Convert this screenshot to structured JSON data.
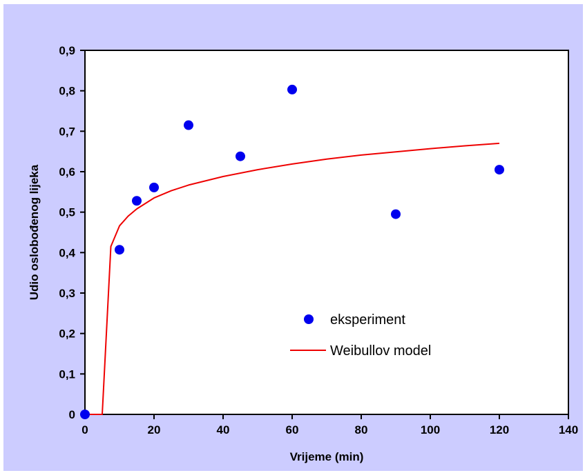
{
  "chart_data": {
    "type": "scatter",
    "xlabel": "Vrijeme (min)",
    "ylabel": "Udio oslobođenog lijeka",
    "xlim": [
      0,
      140
    ],
    "ylim": [
      0,
      0.9
    ],
    "x_ticks": [
      0,
      20,
      40,
      60,
      80,
      100,
      120,
      140
    ],
    "y_ticks": [
      0,
      0.1,
      0.2,
      0.3,
      0.4,
      0.5,
      0.6,
      0.7,
      0.8,
      0.9
    ],
    "x_tick_labels": [
      "0",
      "20",
      "40",
      "60",
      "80",
      "100",
      "120",
      "140"
    ],
    "y_tick_labels": [
      "0",
      "0,1",
      "0,2",
      "0,3",
      "0,4",
      "0,5",
      "0,6",
      "0,7",
      "0,8",
      "0,9"
    ],
    "grid": false,
    "legend_position": "bottom-right",
    "series": [
      {
        "name": "eksperiment",
        "kind": "scatter",
        "color": "#0000ee",
        "x": [
          0,
          10,
          15,
          20,
          30,
          45,
          60,
          90,
          120
        ],
        "y": [
          0.0,
          0.407,
          0.528,
          0.561,
          0.715,
          0.638,
          0.803,
          0.495,
          0.605
        ]
      },
      {
        "name": "Weibullov model",
        "kind": "line",
        "color": "#ee0000",
        "x": [
          0,
          5,
          7.5,
          10,
          12.5,
          15,
          20,
          25,
          30,
          40,
          50,
          60,
          70,
          80,
          90,
          100,
          110,
          120
        ],
        "y": [
          0,
          0,
          0.415,
          0.466,
          0.49,
          0.508,
          0.535,
          0.553,
          0.567,
          0.588,
          0.605,
          0.619,
          0.631,
          0.641,
          0.649,
          0.657,
          0.664,
          0.67
        ]
      }
    ]
  },
  "colors": {
    "outer_background": "#ccccff",
    "plot_background": "#ffffff",
    "axis": "#000000"
  }
}
